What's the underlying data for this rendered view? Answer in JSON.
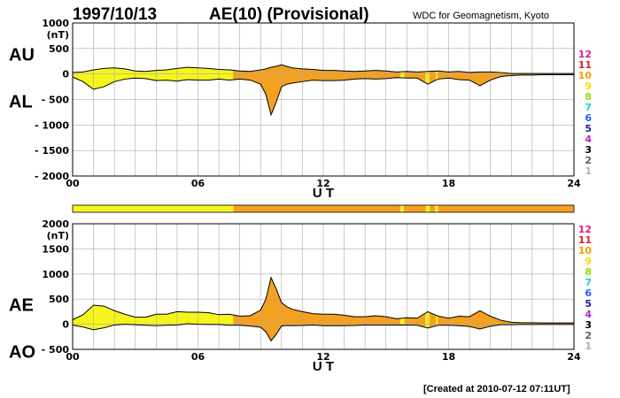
{
  "header": {
    "date": "1997/10/13",
    "index_title": "AE(10) (Provisional)",
    "source": "WDC for Geomagnetism, Kyoto",
    "created": "[Created at 2010-07-12 07:11UT]"
  },
  "colors": {
    "yellow": "#f5f51e",
    "orange": "#f4a020",
    "grid": "#aaaaaa",
    "line": "#000000"
  },
  "legend_scale": [
    {
      "label": "12",
      "color": "#e0208a"
    },
    {
      "label": "11",
      "color": "#e02020"
    },
    {
      "label": "10",
      "color": "#f0a000"
    },
    {
      "label": "9",
      "color": "#f0e000"
    },
    {
      "label": "8",
      "color": "#90e000"
    },
    {
      "label": "7",
      "color": "#20d0d0"
    },
    {
      "label": "6",
      "color": "#2060f0"
    },
    {
      "label": "5",
      "color": "#2020a0"
    },
    {
      "label": "4",
      "color": "#c020c0"
    },
    {
      "label": "3",
      "color": "#000000"
    },
    {
      "label": "2",
      "color": "#606060"
    },
    {
      "label": "1",
      "color": "#b0b0b0"
    }
  ],
  "chart_data": [
    {
      "type": "area",
      "id": "au_al",
      "xlabel": "U T",
      "ylabel": "(nT)",
      "left_labels": [
        "AU",
        "AL"
      ],
      "xlim": [
        0,
        24
      ],
      "ylim": [
        -2000,
        1000
      ],
      "x_ticks": [
        "00",
        "06",
        "12",
        "18",
        "24"
      ],
      "y_ticks": [
        "1000",
        "500",
        "0",
        "- 500",
        "- 1000",
        "- 1500",
        "- 2000"
      ],
      "y_tick_values": [
        1000,
        500,
        0,
        -500,
        -1000,
        -1500,
        -2000
      ],
      "grid": true,
      "series": [
        {
          "name": "AU",
          "x": [
            0,
            0.5,
            1,
            1.5,
            2,
            2.5,
            3,
            3.5,
            4,
            4.5,
            5,
            5.5,
            6,
            6.5,
            7,
            7.5,
            8,
            8.5,
            9,
            9.25,
            9.5,
            9.75,
            10,
            10.25,
            10.5,
            11,
            11.5,
            12,
            12.5,
            13,
            13.5,
            14,
            14.5,
            15,
            15.5,
            16,
            16.5,
            17,
            17.5,
            18,
            18.5,
            19,
            19.5,
            20,
            20.5,
            21,
            21.5,
            22,
            22.5,
            23,
            23.5,
            24
          ],
          "values": [
            30,
            40,
            80,
            110,
            120,
            100,
            60,
            50,
            70,
            80,
            110,
            130,
            120,
            110,
            90,
            80,
            60,
            50,
            80,
            100,
            130,
            150,
            180,
            150,
            120,
            100,
            90,
            70,
            70,
            60,
            50,
            60,
            70,
            60,
            40,
            50,
            40,
            50,
            60,
            40,
            50,
            30,
            40,
            40,
            30,
            10,
            10,
            10,
            10,
            10,
            10,
            10
          ]
        },
        {
          "name": "AL",
          "x": [
            0,
            0.5,
            1,
            1.5,
            2,
            2.5,
            3,
            3.5,
            4,
            4.5,
            5,
            5.5,
            6,
            6.5,
            7,
            7.5,
            8,
            8.5,
            9,
            9.25,
            9.5,
            9.75,
            10,
            10.25,
            10.5,
            11,
            11.5,
            12,
            12.5,
            13,
            13.5,
            14,
            14.5,
            15,
            15.5,
            16,
            16.5,
            17,
            17.5,
            18,
            18.5,
            19,
            19.5,
            20,
            20.5,
            21,
            21.5,
            22,
            22.5,
            23,
            23.5,
            24
          ],
          "values": [
            -60,
            -150,
            -300,
            -250,
            -150,
            -100,
            -80,
            -90,
            -130,
            -120,
            -140,
            -110,
            -120,
            -120,
            -100,
            -120,
            -100,
            -120,
            -200,
            -400,
            -800,
            -550,
            -250,
            -200,
            -180,
            -150,
            -120,
            -130,
            -130,
            -120,
            -100,
            -90,
            -100,
            -90,
            -70,
            -80,
            -80,
            -200,
            -100,
            -80,
            -110,
            -120,
            -230,
            -120,
            -50,
            -30,
            -20,
            -20,
            -15,
            -15,
            -15,
            -15
          ]
        }
      ]
    },
    {
      "type": "area",
      "id": "ae_ao",
      "xlabel": "U T",
      "ylabel": "(nT)",
      "left_labels": [
        "AE",
        "AO"
      ],
      "xlim": [
        0,
        24
      ],
      "ylim": [
        -500,
        2000
      ],
      "x_ticks": [
        "00",
        "06",
        "12",
        "18",
        "24"
      ],
      "y_ticks": [
        "2000",
        "1500",
        "1000",
        "500",
        "0",
        "- 500"
      ],
      "y_tick_values": [
        2000,
        1500,
        1000,
        500,
        0,
        -500
      ],
      "grid": true,
      "series": [
        {
          "name": "AE",
          "x": [
            0,
            0.5,
            1,
            1.5,
            2,
            2.5,
            3,
            3.5,
            4,
            4.5,
            5,
            5.5,
            6,
            6.5,
            7,
            7.5,
            8,
            8.5,
            9,
            9.25,
            9.5,
            9.75,
            10,
            10.25,
            10.5,
            11,
            11.5,
            12,
            12.5,
            13,
            13.5,
            14,
            14.5,
            15,
            15.5,
            16,
            16.5,
            17,
            17.5,
            18,
            18.5,
            19,
            19.5,
            20,
            20.5,
            21,
            21.5,
            22,
            22.5,
            23,
            23.5,
            24
          ],
          "values": [
            90,
            190,
            380,
            360,
            270,
            200,
            140,
            140,
            200,
            200,
            250,
            240,
            240,
            230,
            190,
            200,
            160,
            170,
            280,
            500,
            930,
            700,
            430,
            350,
            300,
            250,
            210,
            200,
            200,
            180,
            150,
            150,
            170,
            150,
            110,
            130,
            120,
            250,
            160,
            120,
            160,
            150,
            270,
            160,
            80,
            40,
            30,
            30,
            25,
            25,
            25,
            25
          ]
        },
        {
          "name": "AO",
          "x": [
            0,
            0.5,
            1,
            1.5,
            2,
            2.5,
            3,
            3.5,
            4,
            4.5,
            5,
            5.5,
            6,
            6.5,
            7,
            7.5,
            8,
            8.5,
            9,
            9.25,
            9.5,
            9.75,
            10,
            10.25,
            10.5,
            11,
            11.5,
            12,
            12.5,
            13,
            13.5,
            14,
            14.5,
            15,
            15.5,
            16,
            16.5,
            17,
            17.5,
            18,
            18.5,
            19,
            19.5,
            20,
            20.5,
            21,
            21.5,
            22,
            22.5,
            23,
            23.5,
            24
          ],
          "values": [
            -15,
            -55,
            -110,
            -70,
            -15,
            0,
            -10,
            -20,
            -30,
            -20,
            -15,
            10,
            0,
            -5,
            -5,
            -20,
            -20,
            -35,
            -60,
            -150,
            -330,
            -200,
            -35,
            -25,
            -30,
            -25,
            -15,
            -30,
            -30,
            -30,
            -25,
            -15,
            -15,
            -15,
            -15,
            -15,
            -20,
            -75,
            -20,
            -20,
            -30,
            -45,
            -95,
            -40,
            -10,
            -10,
            -5,
            -5,
            -3,
            -3,
            -3,
            -3
          ]
        }
      ]
    }
  ],
  "activity_bar": {
    "segments": [
      {
        "from": 0,
        "to": 7.7,
        "level": "yellow"
      },
      {
        "from": 7.7,
        "to": 15.7,
        "level": "orange"
      },
      {
        "from": 15.7,
        "to": 15.85,
        "level": "yellow"
      },
      {
        "from": 15.85,
        "to": 16.9,
        "level": "orange"
      },
      {
        "from": 16.9,
        "to": 17.1,
        "level": "yellow"
      },
      {
        "from": 17.1,
        "to": 17.35,
        "level": "orange"
      },
      {
        "from": 17.35,
        "to": 17.5,
        "level": "yellow"
      },
      {
        "from": 17.5,
        "to": 24,
        "level": "orange"
      }
    ]
  }
}
